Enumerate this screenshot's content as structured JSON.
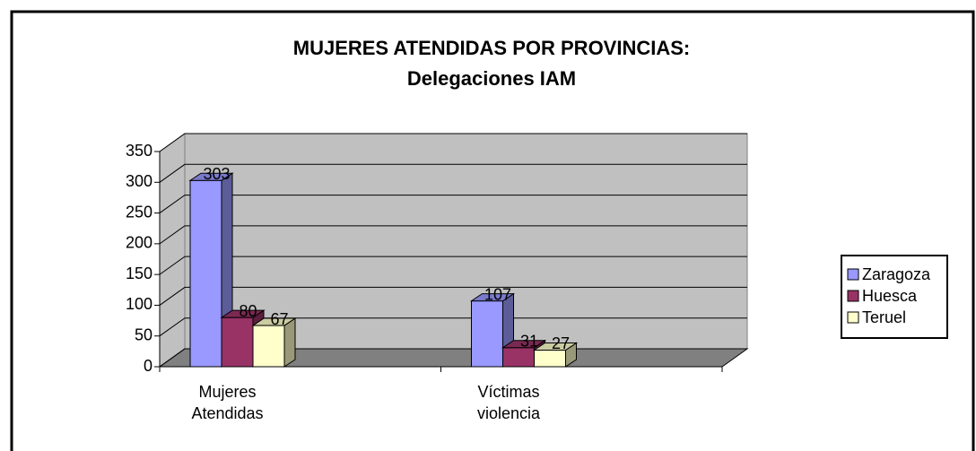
{
  "chart_data": {
    "type": "bar3d",
    "title": "MUJERES ATENDIDAS POR PROVINCIAS:",
    "subtitle": "Delegaciones IAM",
    "categories": [
      "Mujeres Atendidas",
      "Víctimas violencia"
    ],
    "series": [
      {
        "name": "Zaragoza",
        "color": "#9999ff",
        "values": [
          303,
          107
        ]
      },
      {
        "name": "Huesca",
        "color": "#993366",
        "values": [
          80,
          31
        ]
      },
      {
        "name": "Teruel",
        "color": "#ffffcc",
        "values": [
          67,
          27
        ]
      }
    ],
    "ylim": [
      0,
      350
    ],
    "yticks": [
      0,
      50,
      100,
      150,
      200,
      250,
      300,
      350
    ],
    "grid": true,
    "legend": "right"
  }
}
